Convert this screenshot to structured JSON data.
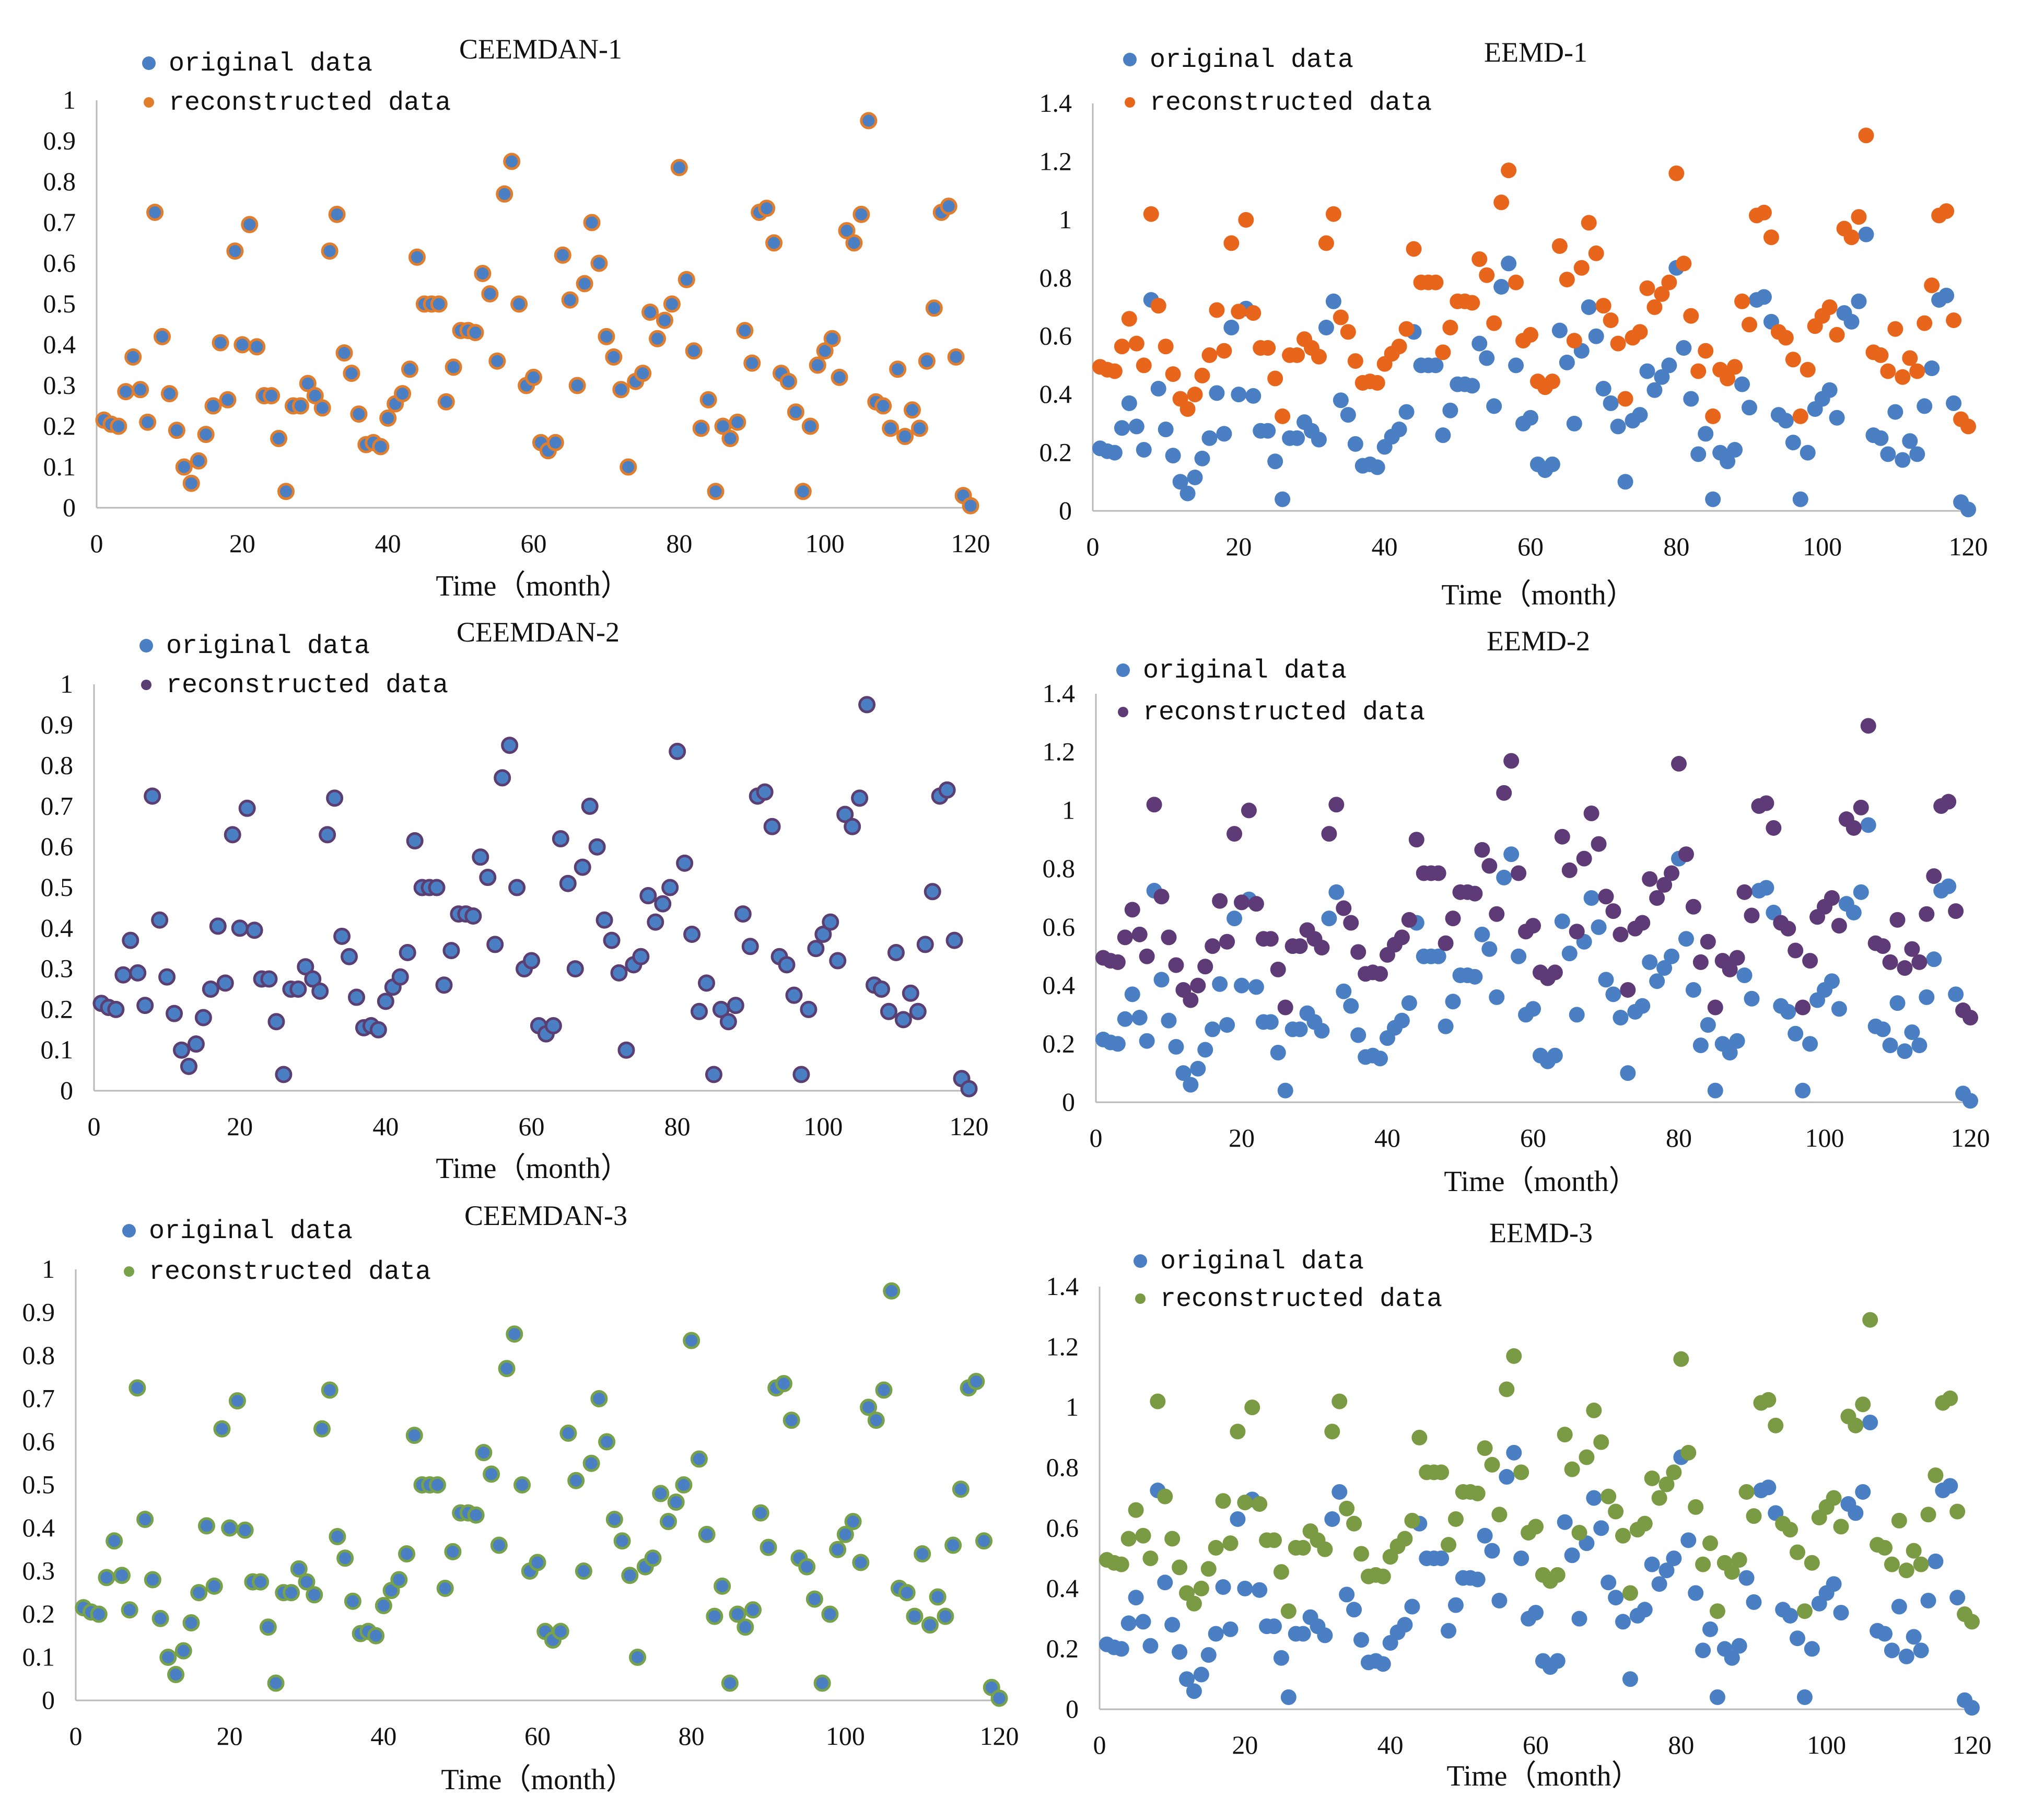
{
  "colors": {
    "original": "#4a7fc4",
    "ceemdan_1_rec": "#e07e2e",
    "ceemdan_2_rec": "#5b3e72",
    "ceemdan_3_rec": "#77a24a",
    "eemd_1_rec": "#e8661c",
    "eemd_2_rec": "#5e3b76",
    "eemd_3_rec": "#7a9a44",
    "axis": "#b8b8b8",
    "text": "#111111"
  },
  "original_series": [
    0.215,
    0.205,
    0.2,
    0.285,
    0.37,
    0.29,
    0.21,
    0.725,
    0.42,
    0.28,
    0.19,
    0.1,
    0.06,
    0.115,
    0.18,
    0.25,
    0.405,
    0.265,
    0.63,
    0.4,
    0.695,
    0.395,
    0.275,
    0.275,
    0.17,
    0.04,
    0.25,
    0.25,
    0.305,
    0.275,
    0.245,
    0.63,
    0.72,
    0.38,
    0.33,
    0.23,
    0.155,
    0.16,
    0.15,
    0.22,
    0.255,
    0.28,
    0.34,
    0.615,
    0.5,
    0.5,
    0.5,
    0.26,
    0.345,
    0.435,
    0.435,
    0.43,
    0.575,
    0.525,
    0.36,
    0.77,
    0.85,
    0.5,
    0.3,
    0.32,
    0.16,
    0.14,
    0.16,
    0.62,
    0.51,
    0.3,
    0.55,
    0.7,
    0.6,
    0.42,
    0.37,
    0.29,
    0.1,
    0.31,
    0.33,
    0.48,
    0.415,
    0.46,
    0.5,
    0.835,
    0.56,
    0.385,
    0.195,
    0.265,
    0.04,
    0.2,
    0.17,
    0.21,
    0.435,
    0.355,
    0.725,
    0.735,
    0.65,
    0.33,
    0.31,
    0.235,
    0.04,
    0.2,
    0.35,
    0.385,
    0.415,
    0.32,
    0.68,
    0.65,
    0.72,
    0.95,
    0.26,
    0.25,
    0.195,
    0.34,
    0.175,
    0.24,
    0.195,
    0.36,
    0.49,
    0.725,
    0.74,
    0.37,
    0.03,
    0.005
  ],
  "eemd_recon_series": [
    0.495,
    0.485,
    0.48,
    0.565,
    0.66,
    0.575,
    0.5,
    1.02,
    0.705,
    0.565,
    0.47,
    0.385,
    0.35,
    0.4,
    0.465,
    0.535,
    0.69,
    0.55,
    0.92,
    0.685,
    1.0,
    0.68,
    0.56,
    0.56,
    0.455,
    0.325,
    0.535,
    0.535,
    0.59,
    0.56,
    0.53,
    0.92,
    1.02,
    0.665,
    0.615,
    0.515,
    0.44,
    0.445,
    0.44,
    0.505,
    0.54,
    0.565,
    0.625,
    0.9,
    0.785,
    0.785,
    0.785,
    0.545,
    0.63,
    0.72,
    0.72,
    0.715,
    0.865,
    0.81,
    0.645,
    1.06,
    1.17,
    0.785,
    0.585,
    0.605,
    0.445,
    0.425,
    0.445,
    0.91,
    0.795,
    0.585,
    0.835,
    0.99,
    0.885,
    0.705,
    0.655,
    0.575,
    0.385,
    0.595,
    0.615,
    0.765,
    0.7,
    0.745,
    0.785,
    1.16,
    0.85,
    0.67,
    0.48,
    0.55,
    0.325,
    0.485,
    0.455,
    0.495,
    0.72,
    0.64,
    1.015,
    1.025,
    0.94,
    0.615,
    0.595,
    0.52,
    0.325,
    0.485,
    0.635,
    0.67,
    0.7,
    0.605,
    0.97,
    0.94,
    1.01,
    1.29,
    0.545,
    0.535,
    0.48,
    0.625,
    0.46,
    0.525,
    0.48,
    0.645,
    0.775,
    1.015,
    1.03,
    0.655,
    0.315,
    0.29
  ],
  "chart_data": [
    {
      "id": "ceemdan1",
      "type": "scatter",
      "title": "CEEMDAN-1",
      "xlabel": "Time（month）",
      "ylabel": "",
      "xlim": [
        0,
        120
      ],
      "ylim": [
        0,
        1
      ],
      "xticks": [
        "0",
        "20",
        "40",
        "60",
        "80",
        "100",
        "120"
      ],
      "yticks": [
        "0",
        "0.1",
        "0.2",
        "0.3",
        "0.4",
        "0.5",
        "0.6",
        "0.7",
        "0.8",
        "0.9",
        "1"
      ],
      "legend": [
        "original data",
        "reconstructed data"
      ],
      "legend_position": "top-left",
      "series": [
        {
          "name": "original data",
          "source": "original_series"
        },
        {
          "name": "reconstructed data",
          "source": "original_series"
        }
      ]
    },
    {
      "id": "eemd1",
      "type": "scatter",
      "title": "EEMD-1",
      "xlabel": "Time（month）",
      "ylabel": "",
      "xlim": [
        0,
        120
      ],
      "ylim": [
        0,
        1.4
      ],
      "xticks": [
        "0",
        "20",
        "40",
        "60",
        "80",
        "100",
        "120"
      ],
      "yticks": [
        "0",
        "0.2",
        "0.4",
        "0.6",
        "0.8",
        "1",
        "1.2",
        "1.4"
      ],
      "legend": [
        "original data",
        "reconstructed data"
      ],
      "legend_position": "top-left",
      "series": [
        {
          "name": "original data",
          "source": "original_series"
        },
        {
          "name": "reconstructed data",
          "source": "eemd_recon_series"
        }
      ]
    },
    {
      "id": "ceemdan2",
      "type": "scatter",
      "title": "CEEMDAN-2",
      "xlabel": "Time（month）",
      "ylabel": "",
      "xlim": [
        0,
        120
      ],
      "ylim": [
        0,
        1
      ],
      "xticks": [
        "0",
        "20",
        "40",
        "60",
        "80",
        "100",
        "120"
      ],
      "yticks": [
        "0",
        "0.1",
        "0.2",
        "0.3",
        "0.4",
        "0.5",
        "0.6",
        "0.7",
        "0.8",
        "0.9",
        "1"
      ],
      "legend": [
        "original data",
        "reconstructed data"
      ],
      "legend_position": "top-left",
      "series": [
        {
          "name": "original data",
          "source": "original_series"
        },
        {
          "name": "reconstructed data",
          "source": "original_series"
        }
      ]
    },
    {
      "id": "eemd2",
      "type": "scatter",
      "title": "EEMD-2",
      "xlabel": "Time（month）",
      "ylabel": "",
      "xlim": [
        0,
        120
      ],
      "ylim": [
        0,
        1.4
      ],
      "xticks": [
        "0",
        "20",
        "40",
        "60",
        "80",
        "100",
        "120"
      ],
      "yticks": [
        "0",
        "0.2",
        "0.4",
        "0.6",
        "0.8",
        "1",
        "1.2",
        "1.4"
      ],
      "legend": [
        "original data",
        "reconstructed data"
      ],
      "legend_position": "top-left",
      "series": [
        {
          "name": "original data",
          "source": "original_series"
        },
        {
          "name": "reconstructed data",
          "source": "eemd_recon_series"
        }
      ]
    },
    {
      "id": "ceemdan3",
      "type": "scatter",
      "title": "CEEMDAN-3",
      "xlabel": "Time（month）",
      "ylabel": "",
      "xlim": [
        0,
        120
      ],
      "ylim": [
        0,
        1
      ],
      "xticks": [
        "0",
        "20",
        "40",
        "60",
        "80",
        "100",
        "120"
      ],
      "yticks": [
        "0",
        "0.1",
        "0.2",
        "0.3",
        "0.4",
        "0.5",
        "0.6",
        "0.7",
        "0.8",
        "0.9",
        "1"
      ],
      "legend": [
        "original data",
        "reconstructed data"
      ],
      "legend_position": "top-left",
      "series": [
        {
          "name": "original data",
          "source": "original_series"
        },
        {
          "name": "reconstructed data",
          "source": "original_series"
        }
      ]
    },
    {
      "id": "eemd3",
      "type": "scatter",
      "title": "EEMD-3",
      "xlabel": "Time（month）",
      "ylabel": "",
      "xlim": [
        0,
        120
      ],
      "ylim": [
        0,
        1.4
      ],
      "xticks": [
        "0",
        "20",
        "40",
        "60",
        "80",
        "100",
        "120"
      ],
      "yticks": [
        "0",
        "0.2",
        "0.4",
        "0.6",
        "0.8",
        "1",
        "1.2",
        "1.4"
      ],
      "legend": [
        "original data",
        "reconstructed data"
      ],
      "legend_position": "top-left",
      "series": [
        {
          "name": "original data",
          "source": "original_series"
        },
        {
          "name": "reconstructed data",
          "source": "eemd_recon_series"
        }
      ]
    }
  ]
}
